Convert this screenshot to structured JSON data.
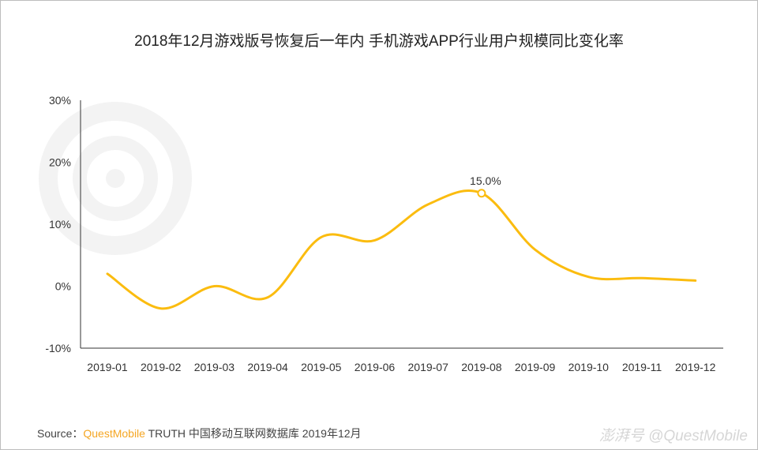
{
  "title": "2018年12月游戏版号恢复后一年内 手机游戏APP行业用户规模同比变化率",
  "source": {
    "prefix": "Source：",
    "brand": "QuestMobile",
    "rest": " TRUTH 中国移动互联网数据库 2019年12月"
  },
  "watermark": {
    "center": "QUEST MOBILE",
    "corner": "澎湃号 @QuestMobile"
  },
  "colors": {
    "line": "#fbbc0f",
    "axis": "#333333",
    "text": "#333333"
  },
  "chart_data": {
    "type": "line",
    "title": "2018年12月游戏版号恢复后一年内 手机游戏APP行业用户规模同比变化率",
    "categories": [
      "2019-01",
      "2019-02",
      "2019-03",
      "2019-04",
      "2019-05",
      "2019-06",
      "2019-07",
      "2019-08",
      "2019-09",
      "2019-10",
      "2019-11",
      "2019-12"
    ],
    "values": [
      2.0,
      -3.6,
      0.0,
      -1.8,
      7.9,
      7.4,
      13.2,
      15.0,
      5.9,
      1.5,
      1.3,
      0.9
    ],
    "unit": "%",
    "ylim": [
      -10,
      30
    ],
    "yticks": [
      "-10%",
      "0%",
      "10%",
      "20%",
      "30%"
    ],
    "ytick_values": [
      -10,
      0,
      10,
      20,
      30
    ],
    "smooth": true,
    "grid": false,
    "annotations": [
      {
        "category": "2019-08",
        "label": "15.0%"
      }
    ]
  }
}
